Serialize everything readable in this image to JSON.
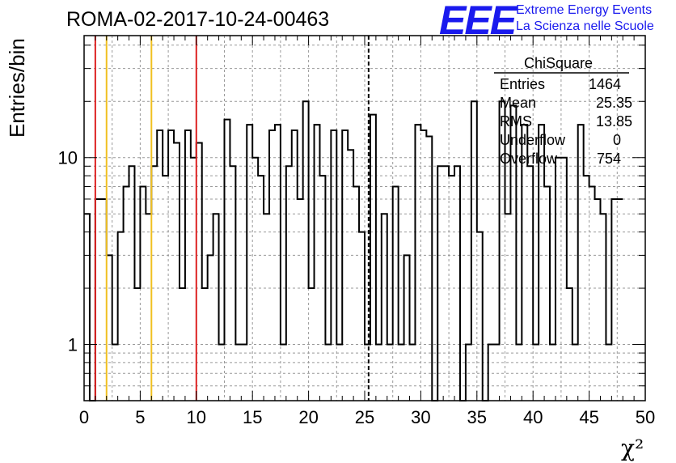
{
  "header": {
    "title": "ROMA-02-2017-10-24-00463",
    "logo_text": "EEE",
    "logo_line1": "Extreme Energy Events",
    "logo_line2": "La Scienza nelle Scuole"
  },
  "stats": {
    "title": "ChiSquare",
    "rows": [
      {
        "name": "Entries",
        "value": "1464"
      },
      {
        "name": "Mean",
        "value": "25.35"
      },
      {
        "name": "RMS",
        "value": "13.85"
      },
      {
        "name": "Underflow",
        "value": "0"
      },
      {
        "name": "Overflow",
        "value": "754"
      }
    ]
  },
  "colors": {
    "red_line": "#dd2222",
    "yellow_line": "#f0c020",
    "logo": "#1a1aee"
  },
  "chart_data": {
    "type": "histogram",
    "title": "ROMA-02-2017-10-24-00463",
    "xlabel": "χ²",
    "ylabel": "Entries/bin",
    "xlim": [
      0,
      50
    ],
    "ylim": [
      0.5,
      45
    ],
    "yscale": "log",
    "grid": true,
    "bin_width": 0.5,
    "x_ticks": [
      "0",
      "5",
      "10",
      "15",
      "20",
      "25",
      "30",
      "35",
      "40",
      "45",
      "50"
    ],
    "y_ticks": [
      "1",
      "10"
    ],
    "values": [
      5,
      0,
      6,
      6,
      3,
      1,
      4,
      7,
      9,
      2,
      7,
      5,
      9,
      14,
      8,
      14,
      12,
      2,
      14,
      10,
      12,
      2,
      3,
      5,
      1,
      16,
      9,
      1,
      1,
      15,
      10,
      8,
      5,
      14,
      15,
      1,
      9,
      14,
      6,
      20,
      2,
      15,
      8,
      1,
      14,
      1,
      14,
      11,
      7,
      4,
      1,
      17,
      1,
      5,
      1,
      7,
      1,
      3,
      1,
      15,
      14,
      13,
      0,
      9,
      9,
      8,
      9,
      0,
      1,
      20,
      4,
      0,
      1,
      1,
      20,
      5,
      19,
      1,
      15,
      9,
      1,
      15,
      7,
      1,
      10,
      10,
      2,
      1,
      15,
      8,
      7,
      6,
      5,
      1,
      6,
      6
    ],
    "vlines": [
      {
        "x": 1,
        "color": "red",
        "style": "solid"
      },
      {
        "x": 2,
        "color": "yellow",
        "style": "solid"
      },
      {
        "x": 6,
        "color": "yellow",
        "style": "solid"
      },
      {
        "x": 10,
        "color": "red",
        "style": "solid"
      },
      {
        "x": 25.35,
        "color": "black",
        "style": "dashed"
      }
    ]
  }
}
